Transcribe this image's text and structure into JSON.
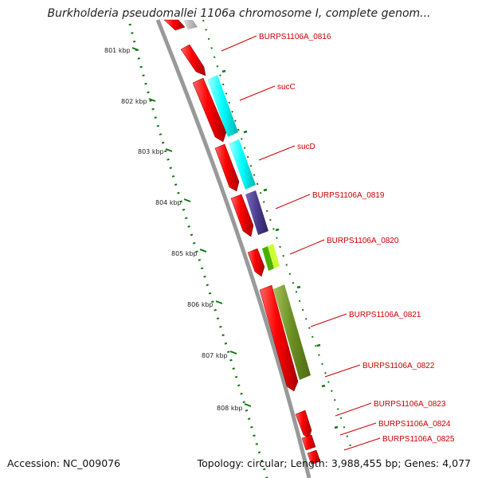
{
  "title": "Burkholderia pseudomallei 1106a chromosome I, complete genom...",
  "footer": {
    "accession": "Accession: NC_009076",
    "summary": "Topology: circular; Length: 3,988,455 bp; Genes: 4,077"
  },
  "ruler": {
    "labels": [
      "801 kbp",
      "802 kbp",
      "803 kbp",
      "804 kbp",
      "805 kbp",
      "806 kbp",
      "807 kbp",
      "808 kbp"
    ]
  },
  "genes": [
    {
      "name": "BURPS1106A_0816"
    },
    {
      "name": "sucC"
    },
    {
      "name": "sucD"
    },
    {
      "name": "BURPS1106A_0819"
    },
    {
      "name": "BURPS1106A_0820"
    },
    {
      "name": "BURPS1106A_0821"
    },
    {
      "name": "BURPS1106A_0822"
    },
    {
      "name": "BURPS1106A_0823"
    },
    {
      "name": "BURPS1106A_0824"
    },
    {
      "name": "BURPS1106A_0825"
    }
  ],
  "colors": {
    "cds": "#ff0000",
    "cog_cyan": "#00ffff",
    "cog_purple": "#4b3c8c",
    "cog_green": "#4caf00",
    "cog_yellow": "#ccff33",
    "cog_olive": "#6b8e23",
    "backbone": "#999999",
    "ticks": "#117711",
    "label": "#cc0000"
  }
}
